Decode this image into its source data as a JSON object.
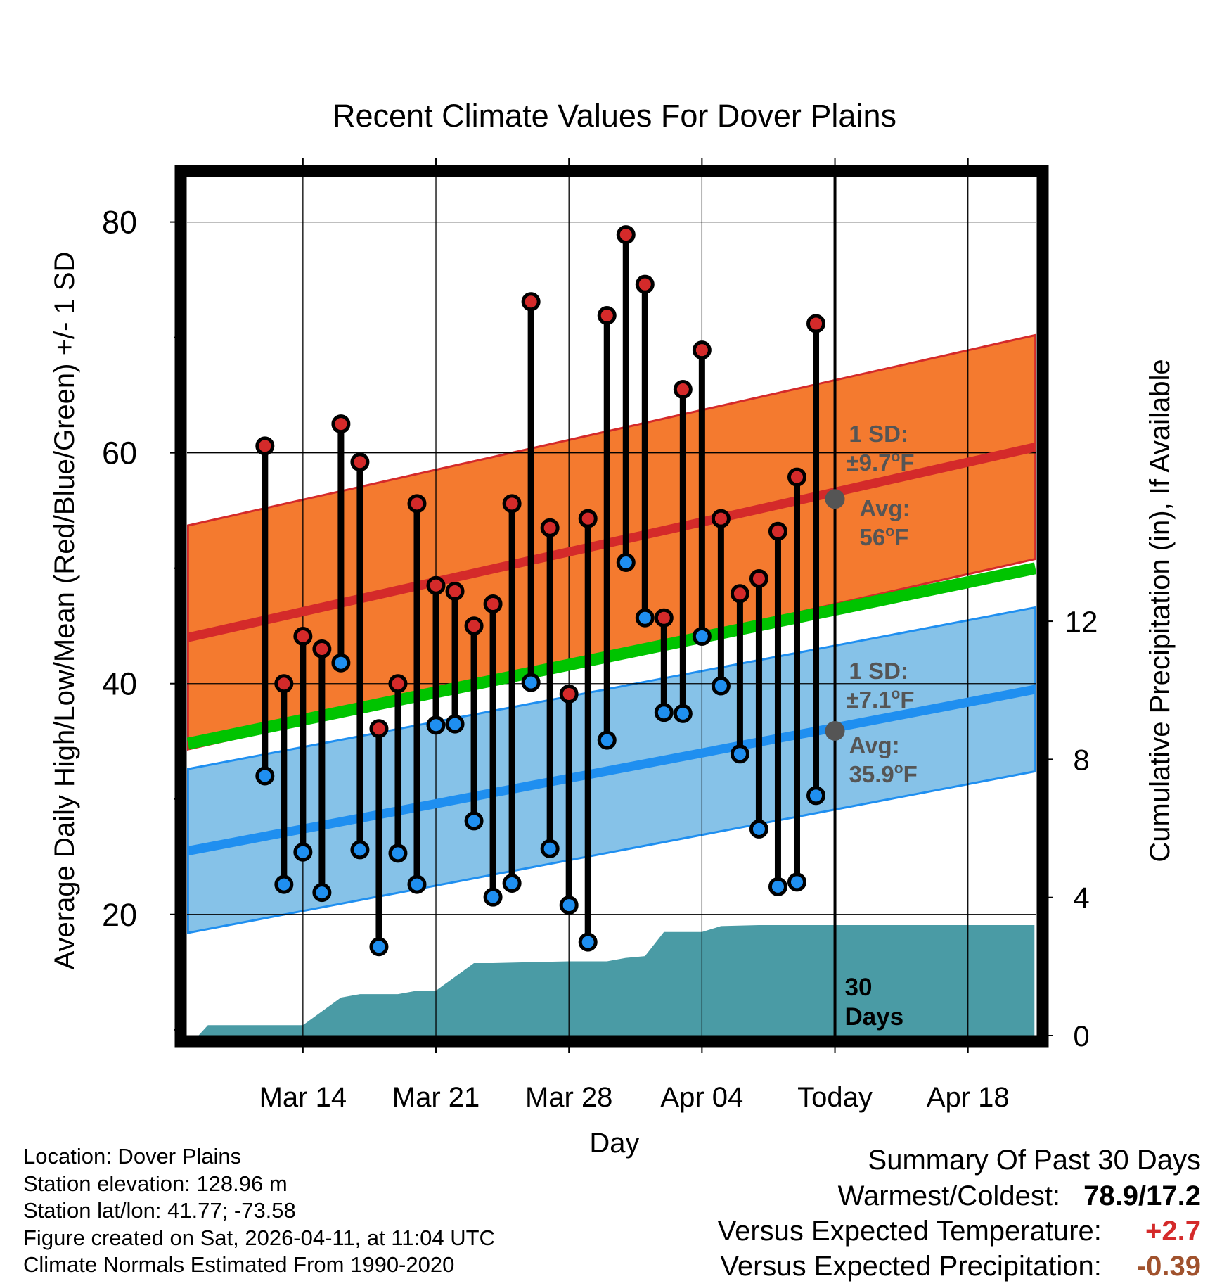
{
  "chart_data": {
    "type": "climate_daily_range",
    "title": "Recent Climate Values For Dover Plains",
    "xlabel": "Day",
    "ylabel_left": "Average Daily High/Low/Mean (Red/Blue/Green) +/- 1 SD",
    "ylabel_right": "Cumulative Precipitation (in), If Available",
    "x_day_range": [
      -33.1,
      11.6
    ],
    "x_ticks": [
      {
        "day": -27,
        "label": "Mar 14"
      },
      {
        "day": -20,
        "label": "Mar 21"
      },
      {
        "day": -13,
        "label": "Mar 28"
      },
      {
        "day": -6,
        "label": "Apr 04"
      },
      {
        "day": 1,
        "label": "Today"
      },
      {
        "day": 8,
        "label": "Apr 18"
      }
    ],
    "y_left_range": [
      9.5,
      84
    ],
    "y_left_ticks": [
      20,
      40,
      60,
      80
    ],
    "y_left_minor_ticks": [
      10,
      30,
      50,
      70
    ],
    "y_right_ticks": [
      0,
      4,
      8,
      12
    ],
    "y_right_range": [
      0,
      24.9
    ],
    "today_day": 1,
    "days_label_line1": "30",
    "days_label_line2": "Days",
    "normals": {
      "high_avg": {
        "start": 44.0,
        "end": 60.5
      },
      "high_sd": 9.7,
      "low_avg": {
        "start": 25.5,
        "end": 39.5
      },
      "low_sd": 7.1,
      "mean": {
        "start": 34.8,
        "end": 50.0
      }
    },
    "high_annotation": {
      "sd_line": "1 SD:",
      "sd_value": "±9.7",
      "avg_label": "Avg:",
      "avg_value": "56",
      "unit": "F",
      "value": 56
    },
    "low_annotation": {
      "sd_line": "1 SD:",
      "sd_value": "±7.1",
      "avg_label": "Avg:",
      "avg_value": "35.9",
      "unit": "F",
      "value": 35.9
    },
    "daily": [
      {
        "day": -29,
        "high": 60.6,
        "low": 32.0
      },
      {
        "day": -28,
        "high": 40.0,
        "low": 22.6
      },
      {
        "day": -27,
        "high": 44.1,
        "low": 25.4
      },
      {
        "day": -26,
        "high": 43.0,
        "low": 21.9
      },
      {
        "day": -25,
        "high": 62.5,
        "low": 41.8
      },
      {
        "day": -24,
        "high": 59.2,
        "low": 25.6
      },
      {
        "day": -23,
        "high": 36.1,
        "low": 17.2
      },
      {
        "day": -22,
        "high": 40.0,
        "low": 25.3
      },
      {
        "day": -21,
        "high": 55.6,
        "low": 22.6
      },
      {
        "day": -20,
        "high": 48.5,
        "low": 36.4
      },
      {
        "day": -19,
        "high": 48.0,
        "low": 36.5
      },
      {
        "day": -18,
        "high": 45.0,
        "low": 28.1
      },
      {
        "day": -17,
        "high": 46.9,
        "low": 21.5
      },
      {
        "day": -16,
        "high": 55.6,
        "low": 22.7
      },
      {
        "day": -15,
        "high": 73.1,
        "low": 40.1
      },
      {
        "day": -14,
        "high": 53.5,
        "low": 25.7
      },
      {
        "day": -13,
        "high": 39.1,
        "low": 20.8
      },
      {
        "day": -12,
        "high": 54.3,
        "low": 17.6
      },
      {
        "day": -11,
        "high": 71.9,
        "low": 35.1
      },
      {
        "day": -10,
        "high": 78.9,
        "low": 50.5
      },
      {
        "day": -9,
        "high": 74.6,
        "low": 45.7
      },
      {
        "day": -8,
        "high": 45.7,
        "low": 37.5
      },
      {
        "day": -7,
        "high": 65.5,
        "low": 37.4
      },
      {
        "day": -6,
        "high": 68.9,
        "low": 44.1
      },
      {
        "day": -5,
        "high": 54.3,
        "low": 39.8
      },
      {
        "day": -4,
        "high": 47.8,
        "low": 33.9
      },
      {
        "day": -3,
        "high": 49.1,
        "low": 27.4
      },
      {
        "day": -2,
        "high": 53.2,
        "low": 22.4
      },
      {
        "day": -1,
        "high": 57.9,
        "low": 22.8
      },
      {
        "day": 0,
        "high": 71.2,
        "low": 30.3
      }
    ],
    "precip_cumulative": [
      {
        "day": -32.5,
        "value": 0.0
      },
      {
        "day": -32.0,
        "value": 0.3
      },
      {
        "day": -27.0,
        "value": 0.3
      },
      {
        "day": -25.0,
        "value": 1.1
      },
      {
        "day": -24.0,
        "value": 1.2
      },
      {
        "day": -22.0,
        "value": 1.2
      },
      {
        "day": -21.0,
        "value": 1.3
      },
      {
        "day": -20.0,
        "value": 1.3
      },
      {
        "day": -18.0,
        "value": 2.1
      },
      {
        "day": -17.0,
        "value": 2.1
      },
      {
        "day": -13.0,
        "value": 2.15
      },
      {
        "day": -11.0,
        "value": 2.15
      },
      {
        "day": -10.0,
        "value": 2.25
      },
      {
        "day": -9.0,
        "value": 2.3
      },
      {
        "day": -8.0,
        "value": 3.0
      },
      {
        "day": -6.0,
        "value": 3.0
      },
      {
        "day": -5.0,
        "value": 3.17
      },
      {
        "day": -3.0,
        "value": 3.2
      },
      {
        "day": 11.5,
        "value": 3.2
      }
    ]
  },
  "colors": {
    "high_band": "#F47A2F",
    "high_line": "#D42A2A",
    "low_band": "#86C2E8",
    "low_line": "#1F8FF0",
    "mean_line": "#00C400",
    "precip_fill": "#4A9BA5",
    "high_dot": "#D42A2A",
    "low_dot": "#1F8FF0",
    "annotation_text": "#555555",
    "avg_dot": "#555555",
    "temp_anomaly": "#D42A2A",
    "precip_anomaly": "#A0522D"
  },
  "info": {
    "location": "Location: Dover Plains",
    "elevation": "Station elevation: 128.96 m",
    "latlon": "Station lat/lon: 41.77; -73.58",
    "created": "Figure created on Sat, 2026-04-11, at 11:04 UTC",
    "normals": "Climate Normals Estimated From 1990-2020"
  },
  "summary": {
    "title": "Summary Of Past 30 Days",
    "warm_cold_label": "Warmest/Coldest:",
    "warm_cold_value": "78.9/17.2",
    "temp_label": "Versus Expected Temperature:",
    "temp_value": "+2.7",
    "precip_label": "Versus Expected Precipitation:",
    "precip_value": "-0.39"
  }
}
